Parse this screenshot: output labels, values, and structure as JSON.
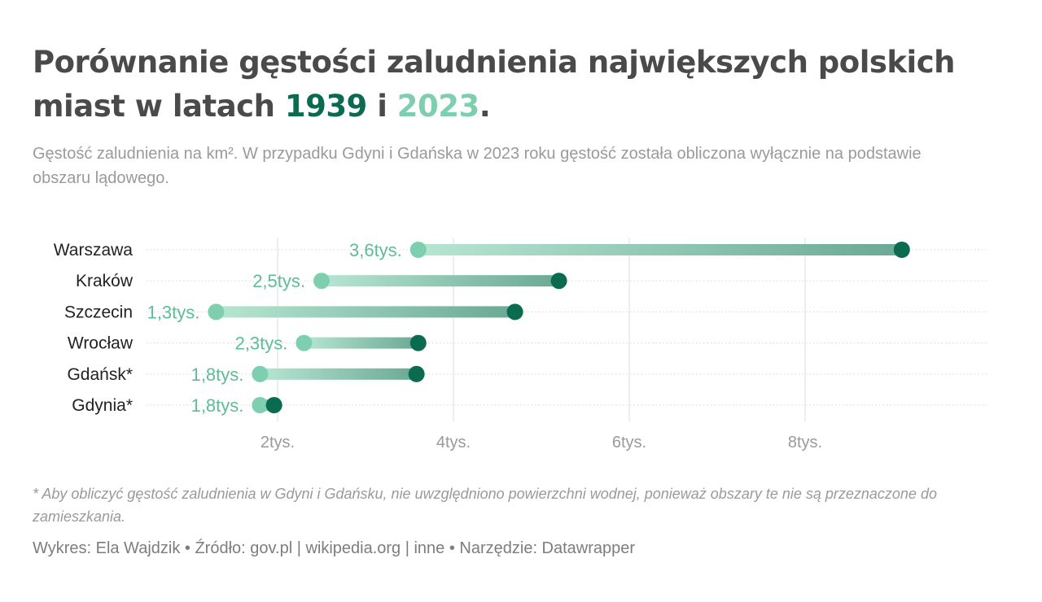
{
  "title": {
    "text_before": "Porównanie gęstości zaludnienia największych polskich miast w latach ",
    "year1": "1939",
    "connector": " i ",
    "year2": "2023",
    "end": "."
  },
  "subtitle": "Gęstość zaludnienia na km². W przypadku Gdyni i Gdańska w 2023 roku gęstość została obliczona wyłącznie na podstawie obszaru lądowego.",
  "colors": {
    "y1939": "#0a6b4f",
    "y2023": "#7dcfb0",
    "label": "#5cbd96",
    "grid": "#e2e2e2",
    "row_line": "#d5d5d5"
  },
  "chart_data": {
    "type": "dumbbell",
    "categories": [
      "Warszawa",
      "Kraków",
      "Szczecin",
      "Wrocław",
      "Gdańsk*",
      "Gdynia*"
    ],
    "series": [
      {
        "name": "1939",
        "values": [
          9100,
          5200,
          4700,
          3600,
          3580,
          1960
        ]
      },
      {
        "name": "2023",
        "values": [
          3600,
          2500,
          1300,
          2300,
          1800,
          1800
        ]
      }
    ],
    "value_labels": [
      "3,6tys.",
      "2,5tys.",
      "1,3tys.",
      "2,3tys.",
      "1,8tys.",
      "1,8tys."
    ],
    "x_ticks": [
      2000,
      4000,
      6000,
      8000
    ],
    "x_tick_labels": [
      "2tys.",
      "4tys.",
      "6tys.",
      "8tys."
    ],
    "xlim": [
      0,
      11000
    ],
    "grid": true
  },
  "footnote": "* Aby obliczyć gęstość zaludnienia w Gdyni i Gdańsku, nie uwzględniono powierzchni wodnej, ponieważ obszary te nie są przeznaczone do zamieszkania.",
  "credits": "Wykres: Ela Wajdzik • Źródło: gov.pl | wikipedia.org | inne • Narzędzie: Datawrapper"
}
